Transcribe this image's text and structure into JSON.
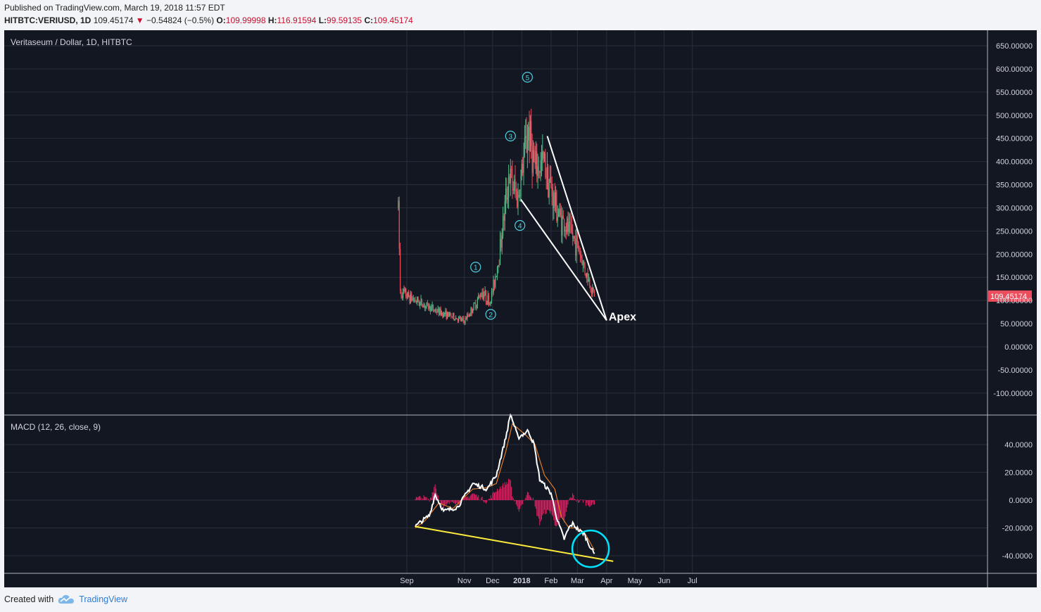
{
  "header": {
    "published": "Published on TradingView.com, March 19, 2018 11:57 EDT",
    "symbol": "HITBTC:VERIUSD, 1D",
    "last": "109.45174",
    "change_arrow": "▼",
    "change": "−0.54824 (−0.5%)",
    "o_label": "O:",
    "o": "109.99998",
    "h_label": "H:",
    "h": "116.91594",
    "l_label": "L:",
    "l": "99.59135",
    "c_label": "C:",
    "c": "109.45174"
  },
  "footer": {
    "created_with": "Created with",
    "brand": "TradingView",
    "logo_icon": "tradingview-cloud-icon"
  },
  "colors": {
    "background": "#131722",
    "grid": "#2a2e39",
    "up": "#53b987",
    "down": "#eb4d5c",
    "macd_line": "#ffffff",
    "signal_line": "#e07b2a",
    "histogram": "#e91e63",
    "trendline": "#ffffff",
    "macd_trendline": "#ffeb3b",
    "circle": "#00e5ff",
    "wave_label": "#4dd0e1",
    "price_label_bg": "#eb4d5c"
  },
  "chart_data": [
    {
      "type": "candlestick",
      "title": "Veritaseum / Dollar, 1D, HITBTC",
      "x_ticks": [
        "Sep",
        "Nov",
        "Dec",
        "2018",
        "Feb",
        "Mar",
        "Apr",
        "May",
        "Jun",
        "Jul"
      ],
      "y_ticks": [
        "650.00000",
        "600.00000",
        "550.00000",
        "500.00000",
        "450.00000",
        "400.00000",
        "350.00000",
        "300.00000",
        "250.00000",
        "200.00000",
        "150.00000",
        "100.00000",
        "50.00000",
        "0.00000",
        "-50.00000",
        "-100.00000"
      ],
      "ylim": [
        -150,
        675
      ],
      "last_price_label": "109.45174",
      "anchors_close": [
        [
          "2017-08-23",
          300
        ],
        [
          "2017-08-25",
          120
        ],
        [
          "2017-09-01",
          110
        ],
        [
          "2017-09-20",
          90
        ],
        [
          "2017-10-05",
          75
        ],
        [
          "2017-10-20",
          65
        ],
        [
          "2017-11-01",
          55
        ],
        [
          "2017-11-12",
          90
        ],
        [
          "2017-11-20",
          120
        ],
        [
          "2017-11-28",
          95
        ],
        [
          "2017-12-02",
          130
        ],
        [
          "2017-12-08",
          200
        ],
        [
          "2017-12-14",
          300
        ],
        [
          "2017-12-18",
          370
        ],
        [
          "2017-12-28",
          320
        ],
        [
          "2018-01-04",
          420
        ],
        [
          "2018-01-08",
          470
        ],
        [
          "2018-01-15",
          380
        ],
        [
          "2018-01-25",
          400
        ],
        [
          "2018-02-02",
          330
        ],
        [
          "2018-02-10",
          280
        ],
        [
          "2018-02-20",
          250
        ],
        [
          "2018-03-01",
          220
        ],
        [
          "2018-03-10",
          160
        ],
        [
          "2018-03-19",
          109.45
        ]
      ],
      "wave_labels": [
        {
          "label": "1",
          "date": "2017-11-13",
          "value": 172
        },
        {
          "label": "2",
          "date": "2017-11-29",
          "value": 70
        },
        {
          "label": "3",
          "date": "2017-12-20",
          "value": 455
        },
        {
          "label": "4",
          "date": "2017-12-30",
          "value": 262
        },
        {
          "label": "5",
          "date": "2018-01-07",
          "value": 582
        }
      ],
      "trendlines": [
        {
          "from": [
            "2018-01-28",
            455
          ],
          "to": [
            "2018-04-01",
            57
          ]
        },
        {
          "from": [
            "2017-12-31",
            318
          ],
          "to": [
            "2018-04-01",
            57
          ]
        }
      ],
      "annotation": {
        "label": "Apex",
        "date": "2018-04-01",
        "value": 57
      }
    },
    {
      "type": "line",
      "title": "MACD (12, 26, close, 9)",
      "y_ticks": [
        "40.0000",
        "20.0000",
        "0.0000",
        "-20.0000",
        "-40.0000"
      ],
      "ylim": [
        -52,
        62
      ],
      "series": [
        {
          "name": "MACD",
          "anchors": [
            [
              "2017-09-10",
              -19
            ],
            [
              "2017-09-15",
              -16
            ],
            [
              "2017-09-25",
              -11
            ],
            [
              "2017-10-01",
              4
            ],
            [
              "2017-10-10",
              -8
            ],
            [
              "2017-10-25",
              -5
            ],
            [
              "2017-11-10",
              12
            ],
            [
              "2017-11-25",
              8
            ],
            [
              "2017-12-05",
              18
            ],
            [
              "2017-12-15",
              45
            ],
            [
              "2017-12-20",
              62
            ],
            [
              "2017-12-28",
              45
            ],
            [
              "2018-01-08",
              50
            ],
            [
              "2018-01-14",
              40
            ],
            [
              "2018-01-20",
              15
            ],
            [
              "2018-02-01",
              5
            ],
            [
              "2018-02-08",
              -15
            ],
            [
              "2018-02-15",
              -28
            ],
            [
              "2018-02-20",
              -20
            ],
            [
              "2018-02-24",
              -17
            ],
            [
              "2018-03-03",
              -22
            ],
            [
              "2018-03-08",
              -24
            ],
            [
              "2018-03-12",
              -30
            ],
            [
              "2018-03-19",
              -39
            ]
          ]
        },
        {
          "name": "Signal",
          "anchors": [
            [
              "2017-09-10",
              -20
            ],
            [
              "2017-09-20",
              -15
            ],
            [
              "2017-10-05",
              -2
            ],
            [
              "2017-10-20",
              -6
            ],
            [
              "2017-11-10",
              8
            ],
            [
              "2017-11-25",
              9
            ],
            [
              "2017-12-05",
              12
            ],
            [
              "2017-12-15",
              35
            ],
            [
              "2017-12-22",
              55
            ],
            [
              "2018-01-05",
              47
            ],
            [
              "2018-01-15",
              40
            ],
            [
              "2018-01-25",
              18
            ],
            [
              "2018-02-05",
              8
            ],
            [
              "2018-02-12",
              -12
            ],
            [
              "2018-02-20",
              -20
            ],
            [
              "2018-03-01",
              -20
            ],
            [
              "2018-03-10",
              -25
            ],
            [
              "2018-03-19",
              -36
            ]
          ]
        }
      ],
      "trendline": {
        "from": [
          "2017-09-10",
          -19
        ],
        "to": [
          "2018-04-08",
          -44
        ]
      },
      "highlight_circle": {
        "date": "2018-03-15",
        "value": -35
      }
    }
  ]
}
